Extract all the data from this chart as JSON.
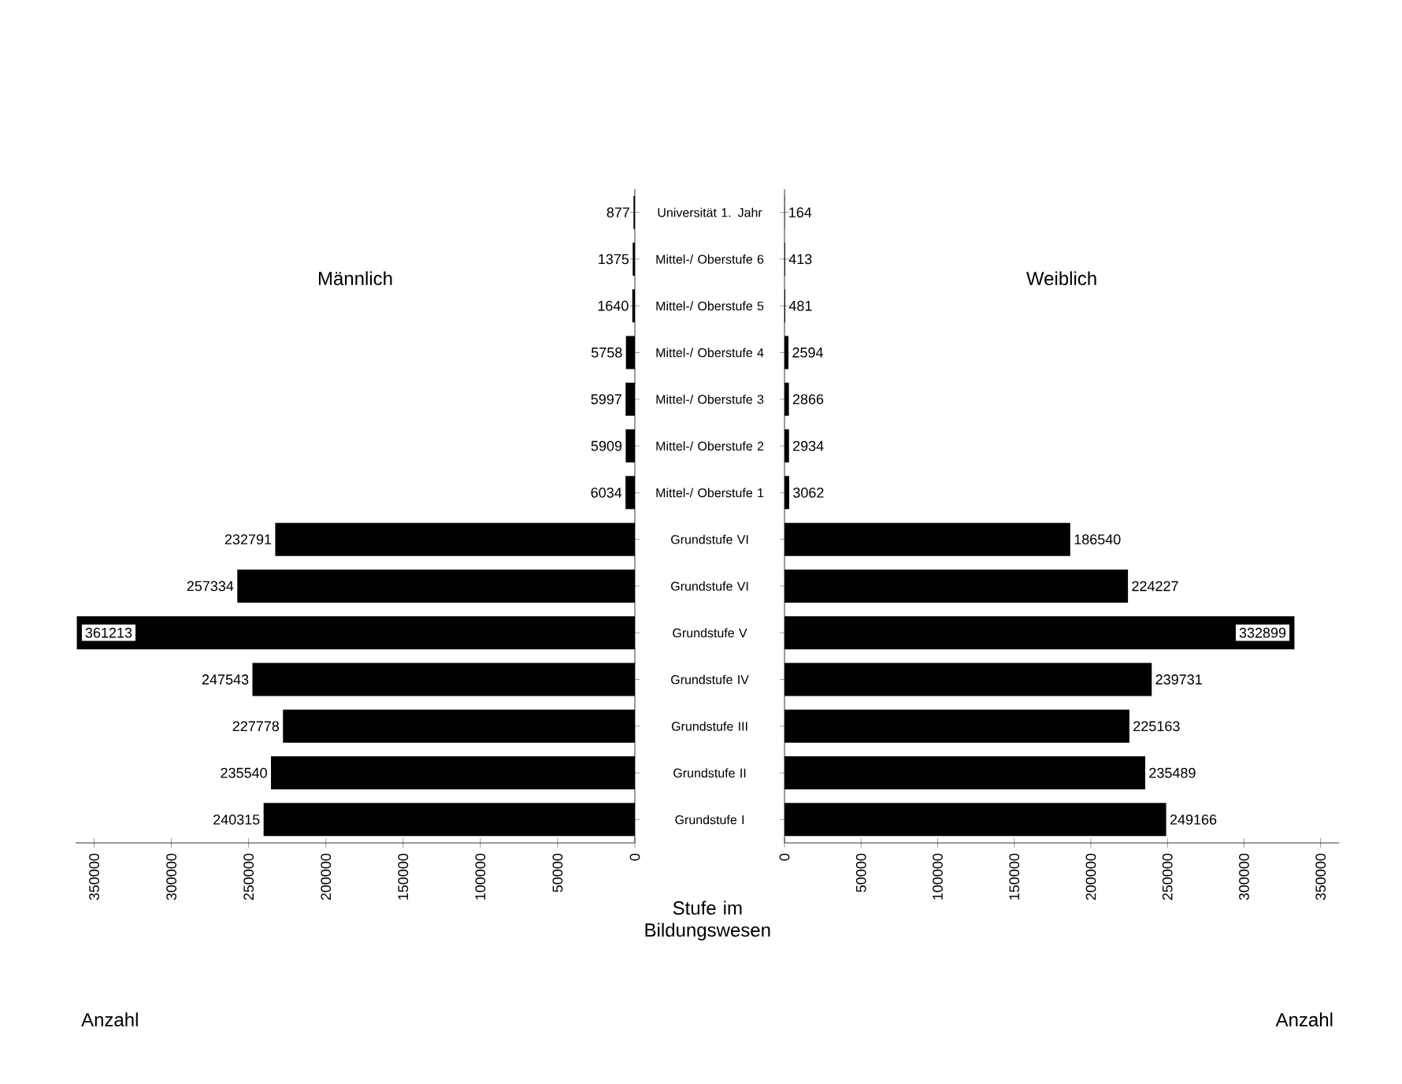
{
  "chart_data": [
    {
      "type": "bar",
      "orientation": "horizontal",
      "title": "Männlich",
      "xlabel": "Anzahl",
      "ylabel": "Stufe im Bildungswesen",
      "categories": [
        "Universität 1. Jahr",
        "Mittel-/ Oberstufe 6",
        "Mittel-/ Oberstufe 5",
        "Mittel-/ Oberstufe 4",
        "Mittel-/ Oberstufe 3",
        "Mittel-/ Oberstufe 2",
        "Mittel-/ Oberstufe 1",
        "Grundstufe VI",
        "Grundstufe VI",
        "Grundstufe V",
        "Grundstufe IV",
        "Grundstufe III",
        "Grundstufe II",
        "Grundstufe I"
      ],
      "values": [
        877,
        1375,
        1640,
        5758,
        5997,
        5909,
        6034,
        232791,
        257334,
        361213,
        247543,
        227778,
        235540,
        240315
      ],
      "color": "#000000",
      "data_labels": true,
      "xlim": [
        362000,
        0
      ],
      "xticks": [
        0,
        50000,
        100000,
        150000,
        200000,
        250000,
        300000,
        350000
      ]
    },
    {
      "type": "bar",
      "orientation": "horizontal",
      "title": "Weiblich",
      "xlabel": "Anzahl",
      "categories": [
        null,
        null,
        null,
        null,
        null,
        null,
        null,
        null,
        null,
        null,
        null,
        null,
        null,
        null
      ],
      "values": [
        164,
        413,
        481,
        2594,
        2866,
        2934,
        3062,
        186540,
        224227,
        332899,
        239731,
        225163,
        235489,
        249166
      ],
      "color": "#000000",
      "data_labels": true,
      "xlim": [
        0,
        362000
      ],
      "xticks": [
        0,
        50000,
        100000,
        150000,
        200000,
        250000,
        300000,
        350000
      ]
    }
  ]
}
